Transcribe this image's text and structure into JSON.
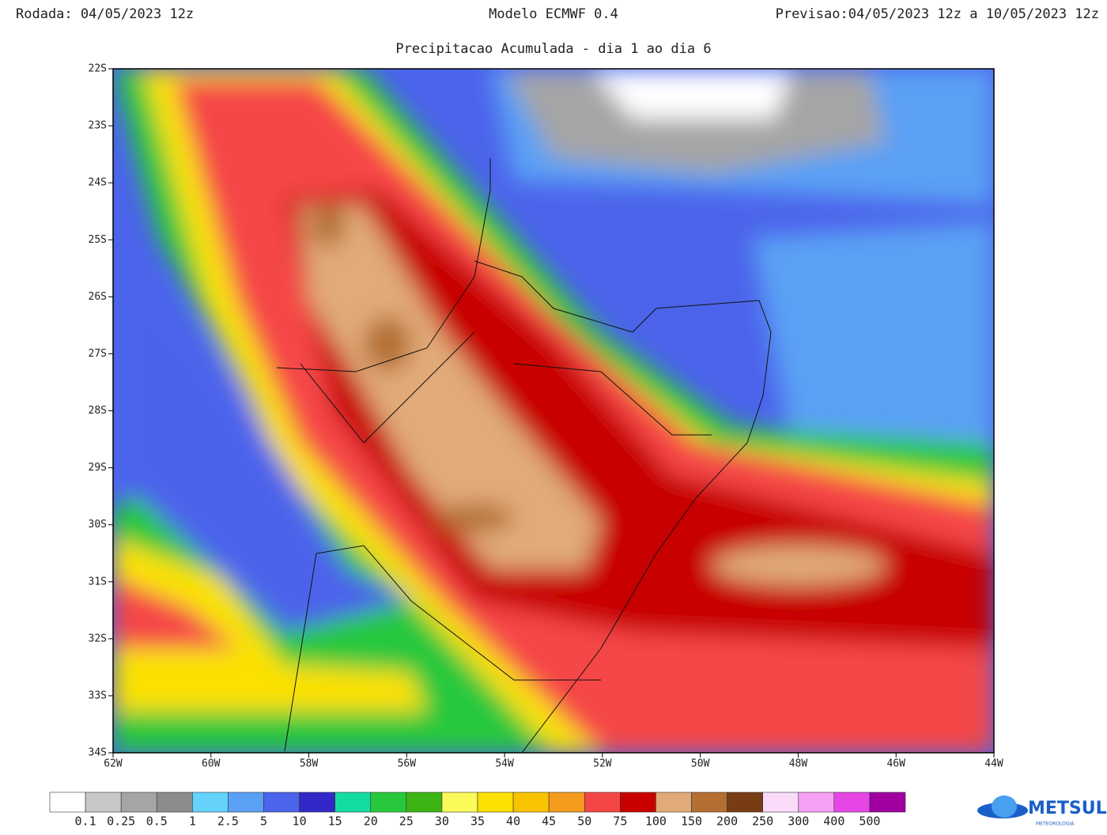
{
  "header": {
    "run": "Rodada: 04/05/2023 12z",
    "title": "Modelo ECMWF 0.4",
    "forecast": "Previsao:04/05/2023 12z a 10/05/2023 12z",
    "subtitle": "Precipitacao Acumulada - dia 1 ao dia 6"
  },
  "map": {
    "lat_labels": [
      "22S",
      "23S",
      "24S",
      "25S",
      "26S",
      "27S",
      "28S",
      "29S",
      "30S",
      "31S",
      "32S",
      "33S",
      "34S"
    ],
    "lon_labels": [
      "62W",
      "60W",
      "58W",
      "56W",
      "54W",
      "52W",
      "50W",
      "48W",
      "46W",
      "44W"
    ]
  },
  "legend": {
    "colors": [
      "#ffffff",
      "#c8c8c8",
      "#a5a5a5",
      "#8c8c8c",
      "#64d2fa",
      "#5aa0f5",
      "#4b64eb",
      "#3228c8",
      "#14dca0",
      "#28c83c",
      "#3cb414",
      "#fafa5a",
      "#fae100",
      "#fac300",
      "#f59b1e",
      "#f54646",
      "#c80000",
      "#e1aa78",
      "#b46e32",
      "#783c14",
      "#fadcfa",
      "#f5a0f5",
      "#e646e6",
      "#a000a0"
    ],
    "labels": [
      "0.1",
      "0.25",
      "0.5",
      "1",
      "2.5",
      "5",
      "10",
      "15",
      "20",
      "25",
      "30",
      "35",
      "40",
      "45",
      "50",
      "75",
      "100",
      "150",
      "200",
      "250",
      "300",
      "400",
      "500"
    ]
  },
  "logo": {
    "name": "METSUL",
    "tagline": "METEOROLOGIA"
  }
}
